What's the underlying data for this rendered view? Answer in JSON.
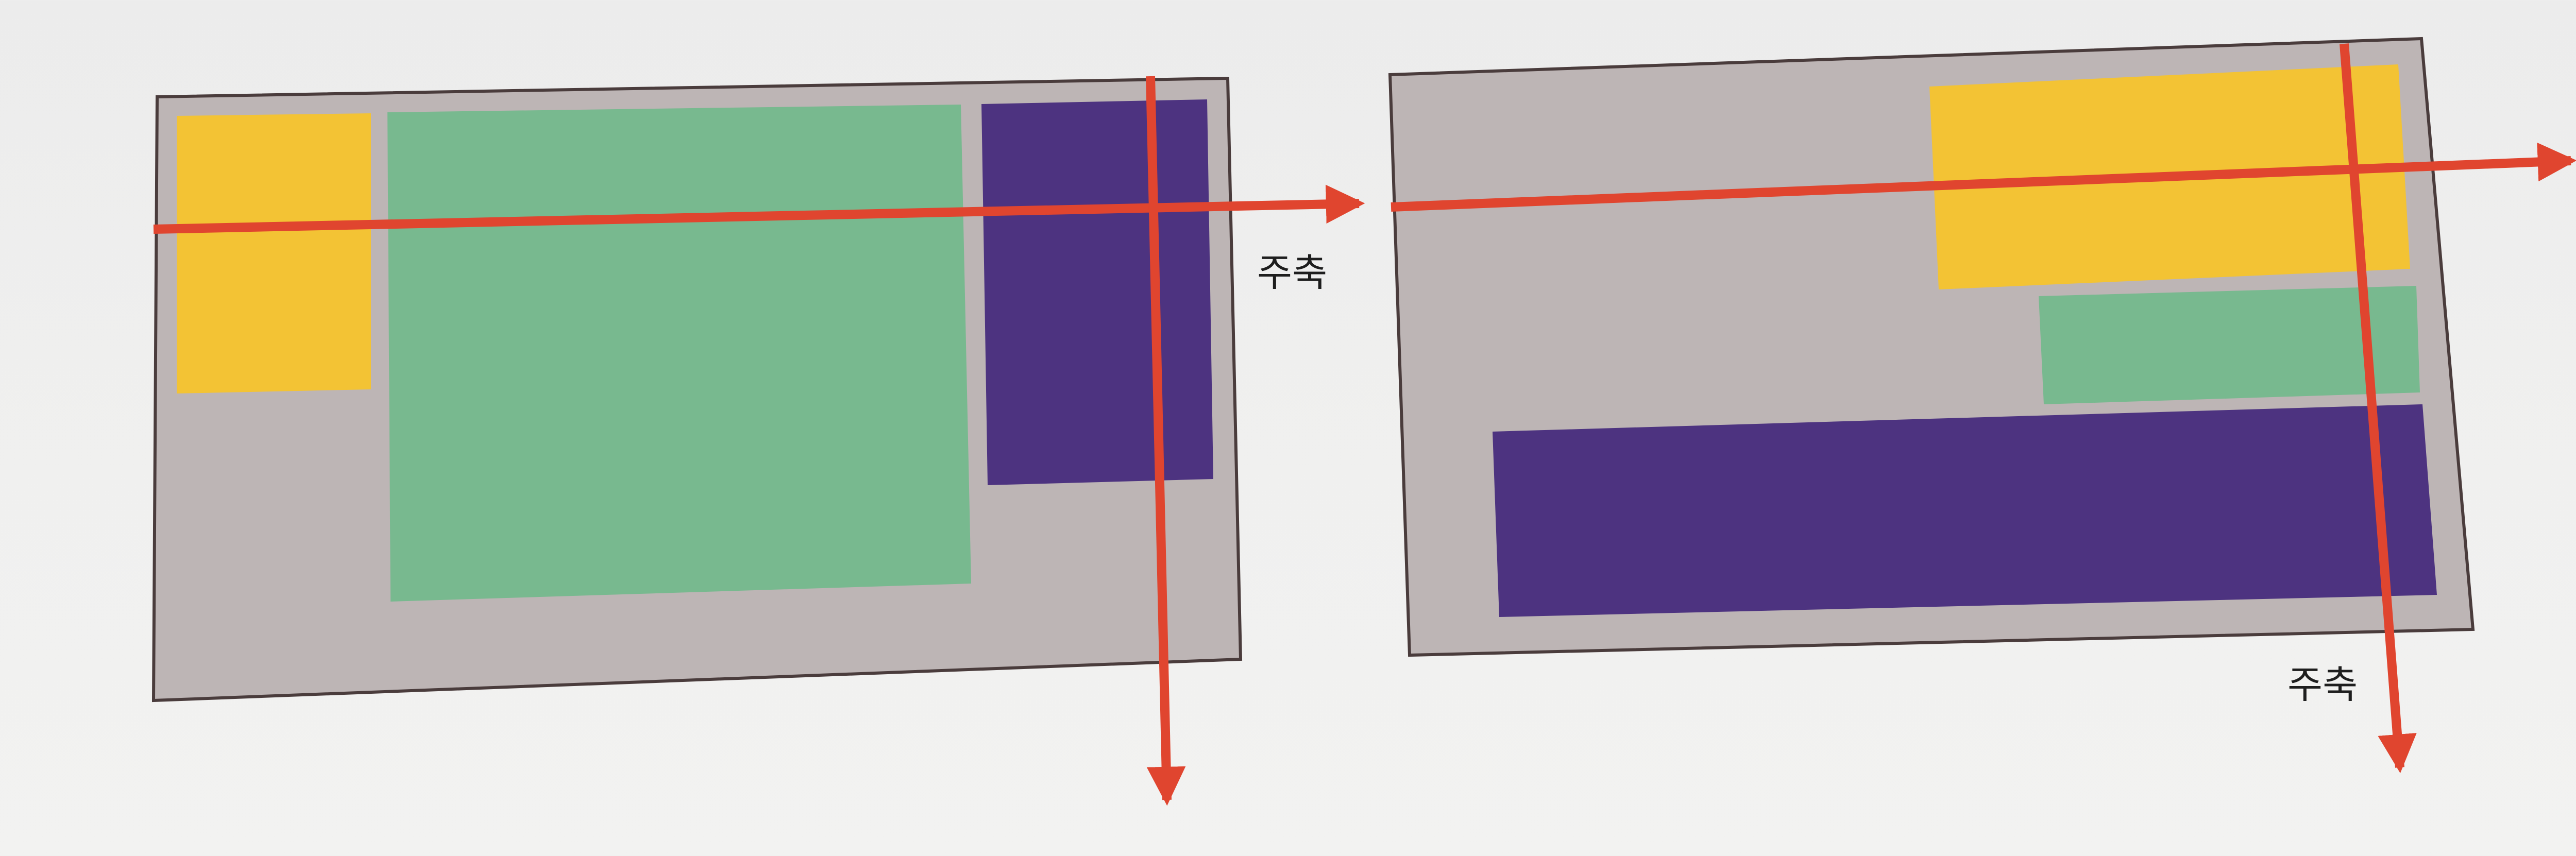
{
  "colors": {
    "background": "#efefee",
    "container_fill": "#bdb5b5",
    "container_border": "#4a3c3c",
    "item_yellow": "#f3c334",
    "item_green": "#78b98f",
    "item_purple": "#4d3380",
    "axis_arrow": "#e0452f"
  },
  "diagrams": [
    {
      "name": "row-direction",
      "container": {
        "items": [
          "yellow",
          "green",
          "purple"
        ]
      },
      "main_axis_label": "주축"
    },
    {
      "name": "column-direction",
      "container": {
        "items": [
          "yellow",
          "green",
          "purple"
        ]
      },
      "main_axis_label": "주축"
    }
  ]
}
